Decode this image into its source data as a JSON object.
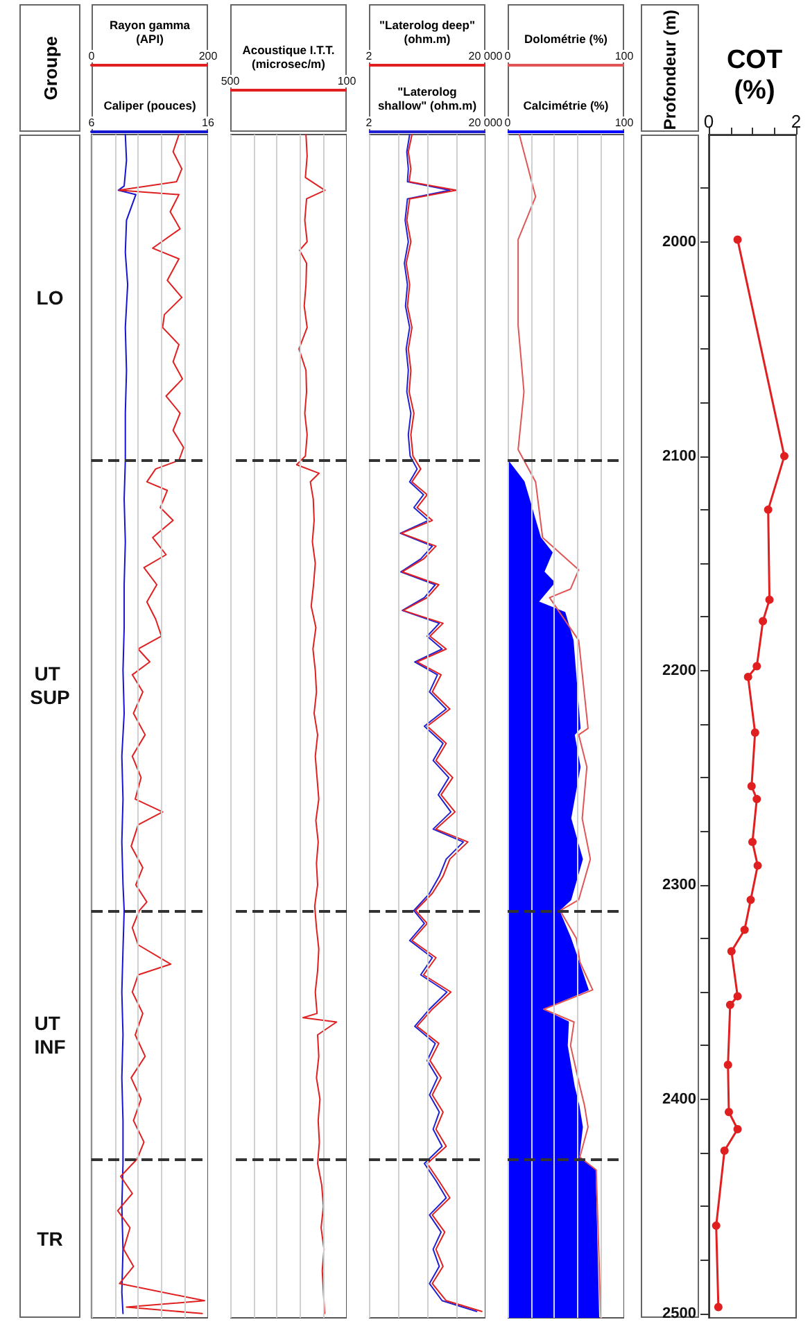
{
  "chart_data": [
    {
      "type": "other",
      "title": "Groupe"
    },
    {
      "type": "line",
      "orientation": "horizontal",
      "xlabel": "Rayon gamma (API)",
      "xlim": [
        0,
        200
      ],
      "xticks": [
        0,
        {
          "value": 40,
          "label": null
        },
        {
          "value": 80,
          "label": null
        },
        {
          "value": 120,
          "label": null
        },
        {
          "value": 160,
          "label": null
        },
        200
      ],
      "x2label": "Caliper (pouces)",
      "x2lim": [
        6,
        16
      ],
      "x2ticks": [
        6,
        16
      ],
      "ylim": [
        2502,
        1950
      ],
      "tick_labels": "x",
      "grid": "x",
      "ref_lines": [
        {
          "axis": "y",
          "value": 2102
        },
        {
          "axis": "y",
          "value": 2312
        },
        {
          "axis": "y",
          "value": 2428
        }
      ],
      "annotations": [
        "LO",
        "UT SUP",
        "UT INF",
        "TR"
      ],
      "series": [
        {
          "color": "#1515d0",
          "axis": "x2",
          "values": [
            8.9,
            9.0,
            8.8,
            8.3,
            9.8,
            9.0,
            8.9,
            9.1,
            8.9,
            9.0,
            8.9,
            8.9,
            8.8,
            8.9,
            8.8,
            8.8,
            8.7,
            8.8,
            8.6,
            8.7,
            8.6,
            8.7,
            8.8,
            8.7,
            8.6,
            8.7,
            8.6,
            8.7,
            8.7,
            8.6,
            8.7,
            8.6,
            8.7
          ],
          "x": [
            1950,
            1962,
            1974,
            1976,
            1978,
            1990,
            2005,
            2020,
            2040,
            2060,
            2080,
            2102,
            2120,
            2140,
            2160,
            2180,
            2200,
            2220,
            2240,
            2260,
            2280,
            2300,
            2312,
            2330,
            2350,
            2370,
            2390,
            2410,
            2430,
            2450,
            2470,
            2490,
            2500
          ]
        },
        {
          "color": "#e02020",
          "values": [
            150,
            140,
            155,
            146,
            47,
            150,
            135,
            152,
            105,
            150,
            130,
            155,
            125,
            122,
            150,
            140,
            156,
            128,
            152,
            140,
            158,
            150,
            110,
            95,
            130,
            118,
            140,
            105,
            128,
            90,
            112,
            95,
            110,
            120,
            80,
            100,
            70,
            88,
            72,
            92,
            70,
            85,
            75,
            122,
            80,
            68,
            88,
            76,
            95,
            82,
            70,
            80,
            136,
            80,
            70,
            88,
            75,
            92,
            68,
            85,
            72,
            90,
            78,
            50,
            70,
            45,
            66,
            55,
            72,
            48,
            194,
            60,
            190
          ],
          "x": [
            1950,
            1958,
            1966,
            1972,
            1976,
            1978,
            1986,
            1994,
            2003,
            2008,
            2018,
            2026,
            2034,
            2040,
            2048,
            2056,
            2064,
            2072,
            2080,
            2088,
            2096,
            2102,
            2106,
            2112,
            2116,
            2124,
            2130,
            2138,
            2146,
            2152,
            2160,
            2168,
            2176,
            2184,
            2190,
            2196,
            2202,
            2210,
            2220,
            2230,
            2240,
            2250,
            2260,
            2266,
            2272,
            2282,
            2292,
            2300,
            2308,
            2312,
            2320,
            2328,
            2337,
            2342,
            2350,
            2360,
            2370,
            2380,
            2390,
            2400,
            2410,
            2420,
            2428,
            2436,
            2444,
            2452,
            2460,
            2470,
            2478,
            2486,
            2494,
            2497,
            2500
          ]
        }
      ]
    },
    {
      "type": "line",
      "orientation": "horizontal",
      "xlabel": "Acoustique I.T.T. (microsec/m)",
      "xlim": [
        500,
        100
      ],
      "xticks": [
        500,
        {
          "value": 420,
          "label": null
        },
        {
          "value": 340,
          "label": null
        },
        {
          "value": 260,
          "label": null
        },
        {
          "value": 180,
          "label": null
        },
        100
      ],
      "ylim": [
        2502,
        1950
      ],
      "tick_labels": "x",
      "grid": "x",
      "ref_lines": [
        {
          "axis": "y",
          "value": 2102
        },
        {
          "axis": "y",
          "value": 2312
        },
        {
          "axis": "y",
          "value": 2428
        }
      ],
      "series": [
        {
          "color": "#e02020",
          "values": [
            240,
            236,
            242,
            175,
            238,
            244,
            236,
            262,
            238,
            240,
            246,
            236,
            264,
            240,
            238,
            244,
            236,
            242,
            272,
            195,
            225,
            215,
            212,
            218,
            208,
            214,
            222,
            206,
            216,
            208,
            204,
            212,
            200,
            208,
            202,
            196,
            206,
            198,
            204,
            200,
            210,
            204,
            196,
            200,
            208,
            202,
            250,
            135,
            200,
            196,
            204,
            192,
            198,
            194,
            200,
            186,
            180,
            188,
            178,
            184,
            180,
            176
          ],
          "x": [
            1950,
            1960,
            1970,
            1976,
            1980,
            1990,
            2000,
            2004,
            2010,
            2020,
            2030,
            2040,
            2050,
            2060,
            2070,
            2080,
            2090,
            2100,
            2104,
            2108,
            2112,
            2120,
            2130,
            2140,
            2150,
            2160,
            2170,
            2180,
            2190,
            2200,
            2210,
            2220,
            2230,
            2240,
            2250,
            2260,
            2270,
            2280,
            2290,
            2300,
            2310,
            2320,
            2330,
            2340,
            2350,
            2360,
            2362,
            2364,
            2370,
            2380,
            2390,
            2400,
            2410,
            2420,
            2430,
            2440,
            2450,
            2460,
            2470,
            2480,
            2490,
            2500
          ]
        }
      ]
    },
    {
      "type": "line",
      "orientation": "horizontal",
      "log": "x",
      "xlabel": "\"Laterolog deep\" (ohm.m)",
      "xlim": [
        2,
        20000
      ],
      "xticks": [
        2,
        {
          "value": 20,
          "label": null
        },
        {
          "value": 200,
          "label": null
        },
        {
          "value": 2000,
          "label": null
        },
        {
          "value": 20000,
          "label": "20 000"
        }
      ],
      "x2label": "\"Laterolog shallow\" (ohm.m)",
      "x2lim": [
        2,
        20000
      ],
      "x2ticks": [
        2,
        {
          "value": 20000,
          "label": "20 000"
        }
      ],
      "ylim": [
        2502,
        1950
      ],
      "tick_labels": "x",
      "grid": "x",
      "ref_lines": [
        {
          "axis": "y",
          "value": 2102
        },
        {
          "axis": "y",
          "value": 2312
        },
        {
          "axis": "y",
          "value": 2428
        }
      ],
      "series": [
        {
          "color": "#2020d0",
          "values": [
            50,
            40,
            45,
            42,
            1200,
            42,
            35,
            45,
            33,
            42,
            36,
            50,
            38,
            45,
            40,
            55,
            45,
            52,
            90,
            50,
            150,
            70,
            220,
            24,
            300,
            120,
            25,
            380,
            160,
            28,
            520,
            200,
            650,
            75,
            450,
            240,
            900,
            160,
            700,
            320,
            1100,
            480,
            1300,
            320,
            3500,
            900,
            520,
            240,
            70,
            160,
            50,
            300,
            120,
            950,
            240,
            75,
            380,
            200,
            450,
            240,
            520,
            320,
            650,
            160,
            400,
            900,
            240,
            600,
            320,
            520,
            240,
            650,
            10000
          ],
          "x": [
            1950,
            1958,
            1966,
            1972,
            1976,
            1980,
            1990,
            2000,
            2010,
            2020,
            2030,
            2040,
            2050,
            2060,
            2070,
            2080,
            2090,
            2100,
            2106,
            2112,
            2118,
            2124,
            2130,
            2136,
            2142,
            2148,
            2154,
            2160,
            2166,
            2172,
            2178,
            2184,
            2190,
            2196,
            2202,
            2210,
            2218,
            2226,
            2234,
            2242,
            2250,
            2258,
            2266,
            2274,
            2280,
            2288,
            2296,
            2304,
            2312,
            2318,
            2326,
            2334,
            2342,
            2350,
            2358,
            2366,
            2374,
            2382,
            2390,
            2398,
            2406,
            2414,
            2422,
            2430,
            2438,
            2446,
            2454,
            2462,
            2470,
            2478,
            2486,
            2494,
            2499
          ]
        },
        {
          "color": "#e02020",
          "values": [
            60,
            45,
            55,
            48,
            2000,
            50,
            40,
            55,
            38,
            50,
            42,
            60,
            45,
            55,
            48,
            70,
            55,
            65,
            120,
            60,
            200,
            90,
            300,
            26,
            400,
            150,
            28,
            500,
            200,
            30,
            700,
            250,
            900,
            90,
            600,
            300,
            1200,
            200,
            900,
            400,
            1500,
            600,
            1800,
            400,
            5000,
            1200,
            700,
            300,
            80,
            200,
            60,
            400,
            150,
            1300,
            300,
            90,
            500,
            250,
            600,
            300,
            700,
            400,
            900,
            200,
            500,
            1200,
            300,
            800,
            400,
            700,
            300,
            900,
            15000
          ],
          "x": [
            1950,
            1958,
            1966,
            1972,
            1976,
            1980,
            1990,
            2000,
            2010,
            2020,
            2030,
            2040,
            2050,
            2060,
            2070,
            2080,
            2090,
            2100,
            2106,
            2112,
            2118,
            2124,
            2130,
            2136,
            2142,
            2148,
            2154,
            2160,
            2166,
            2172,
            2178,
            2184,
            2190,
            2196,
            2202,
            2210,
            2218,
            2226,
            2234,
            2242,
            2250,
            2258,
            2266,
            2274,
            2280,
            2288,
            2296,
            2304,
            2312,
            2318,
            2326,
            2334,
            2342,
            2350,
            2358,
            2366,
            2374,
            2382,
            2390,
            2398,
            2406,
            2414,
            2422,
            2430,
            2438,
            2446,
            2454,
            2462,
            2470,
            2478,
            2486,
            2494,
            2499
          ]
        }
      ]
    },
    {
      "type": "line",
      "orientation": "horizontal",
      "xlabel": "Dolométrie (%)",
      "xlim": [
        0,
        100
      ],
      "xticks": [
        0,
        {
          "value": 20,
          "label": null
        },
        {
          "value": 40,
          "label": null
        },
        {
          "value": 60,
          "label": null
        },
        {
          "value": 80,
          "label": null
        },
        100
      ],
      "x2label": "Calcimétrie (%)",
      "x2lim": [
        0,
        100
      ],
      "x2ticks": [
        0,
        100
      ],
      "ylim": [
        2502,
        1950
      ],
      "tick_labels": "x",
      "grid": "x",
      "ref_lines": [
        {
          "axis": "y",
          "value": 2102
        },
        {
          "axis": "y",
          "value": 2312
        },
        {
          "axis": "y",
          "value": 2428
        }
      ],
      "series": [
        {
          "type": "area",
          "color": "#0000ff",
          "axis": "x2",
          "values": [
            0,
            14,
            28,
            38,
            31,
            40,
            26,
            49,
            56,
            62,
            57,
            62,
            54,
            64,
            54,
            44,
            54,
            61,
            69,
            29,
            52,
            51,
            57,
            61,
            64,
            61,
            75,
            78
          ],
          "x": [
            2102,
            2112,
            2138,
            2145,
            2154,
            2159,
            2168,
            2173,
            2186,
            2227,
            2230,
            2245,
            2269,
            2288,
            2307,
            2312,
            2325,
            2336,
            2349,
            2358,
            2364,
            2375,
            2394,
            2403,
            2413,
            2427,
            2433,
            2502
          ]
        },
        {
          "color": "#e05555",
          "values": [
            10,
            24,
            9,
            9,
            14,
            9,
            24,
            30,
            61,
            54,
            36,
            61,
            69,
            61,
            68,
            64,
            71,
            61,
            45,
            59,
            62,
            73,
            31,
            57,
            54,
            62,
            66,
            69,
            62,
            76,
            80
          ],
          "x": [
            1950,
            1979,
            1999,
            2039,
            2070,
            2097,
            2112,
            2138,
            2153,
            2162,
            2166,
            2186,
            2227,
            2230,
            2245,
            2269,
            2288,
            2307,
            2312,
            2325,
            2336,
            2349,
            2358,
            2364,
            2375,
            2394,
            2403,
            2413,
            2427,
            2433,
            2502
          ]
        }
      ]
    },
    {
      "type": "line",
      "orientation": "horizontal",
      "xlabel": "COT (%)",
      "ylabel": "Profondeur (m)",
      "xlim": [
        0,
        2
      ],
      "xticks": [
        0,
        {
          "value": 0.5,
          "label": null
        },
        {
          "value": 1,
          "label": null
        },
        {
          "value": 1.5,
          "label": null
        },
        2
      ],
      "ylim": [
        2502,
        1950
      ],
      "yticks": [
        {
          "value": 1975,
          "label": null
        },
        2000,
        {
          "value": 2025,
          "label": null
        },
        {
          "value": 2050,
          "label": null
        },
        {
          "value": 2075,
          "label": null
        },
        2100,
        {
          "value": 2125,
          "label": null
        },
        {
          "value": 2150,
          "label": null
        },
        {
          "value": 2175,
          "label": null
        },
        2200,
        {
          "value": 2225,
          "label": null
        },
        {
          "value": 2250,
          "label": null
        },
        {
          "value": 2275,
          "label": null
        },
        2300,
        {
          "value": 2325,
          "label": null
        },
        {
          "value": 2350,
          "label": null
        },
        {
          "value": 2375,
          "label": null
        },
        2400,
        {
          "value": 2425,
          "label": null
        },
        {
          "value": 2450,
          "label": null
        },
        {
          "value": 2475,
          "label": null
        },
        2500
      ],
      "marker": "circle",
      "series": [
        {
          "color": "#e02020",
          "values": [
            0.66,
            1.73,
            1.36,
            1.39,
            1.24,
            1.1,
            0.9,
            1.06,
            0.98,
            1.1,
            1.0,
            1.12,
            0.96,
            0.82,
            0.52,
            0.66,
            0.49,
            0.44,
            0.46,
            0.66,
            0.36,
            0.17,
            0.22
          ],
          "x": [
            1999,
            2100,
            2125,
            2167,
            2177,
            2198,
            2203,
            2229,
            2254,
            2260,
            2280,
            2291,
            2307,
            2321,
            2331,
            2352,
            2356,
            2384,
            2406,
            2414,
            2424,
            2459,
            2497
          ]
        }
      ]
    }
  ]
}
